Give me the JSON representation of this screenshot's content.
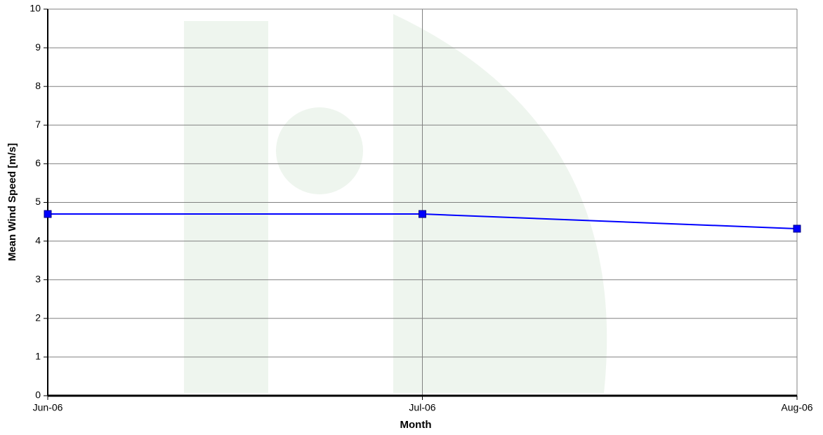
{
  "chart_data": {
    "type": "line",
    "x_label": "Month",
    "y_label": "Mean Wind Speed [m/s]",
    "categories": [
      "Jun-06",
      "Jul-06",
      "Aug-06"
    ],
    "values": [
      4.7,
      4.7,
      4.32
    ],
    "color": "#0000ff",
    "ylim": [
      0,
      10
    ],
    "yticks": [
      0,
      1,
      2,
      3,
      4,
      5,
      6,
      7,
      8,
      9,
      10
    ],
    "grid": true
  }
}
